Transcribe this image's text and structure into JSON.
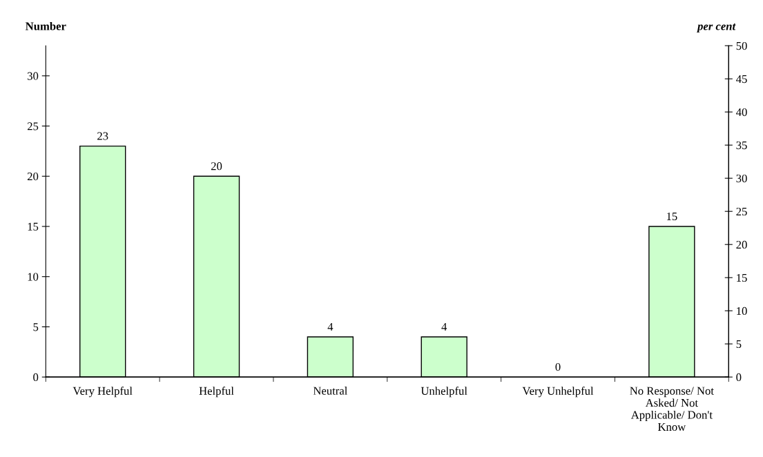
{
  "chart_data": {
    "type": "bar",
    "categories": [
      "Very Helpful",
      "Helpful",
      "Neutral",
      "Unhelpful",
      "Very Unhelpful",
      "No Response/ Not\nAsked/ Not\nApplicable/ Don't\nKnow"
    ],
    "values": [
      23,
      20,
      4,
      4,
      0,
      15
    ],
    "color": "#ccffcc",
    "data_labels": true,
    "ylabel": "Number",
    "y2label": "per cent",
    "ylim": [
      0,
      33
    ],
    "yticks": [
      0,
      5,
      10,
      15,
      20,
      25,
      30
    ],
    "y2lim": [
      0,
      50
    ],
    "y2ticks": [
      0,
      5,
      10,
      15,
      20,
      25,
      30,
      35,
      40,
      45,
      50
    ],
    "grid": false,
    "legend": false
  }
}
